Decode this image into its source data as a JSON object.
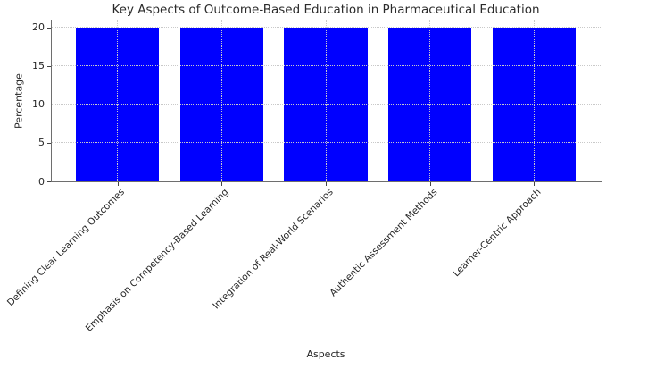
{
  "chart_data": {
    "type": "bar",
    "title": "Key Aspects of Outcome-Based Education in Pharmaceutical Education",
    "xlabel": "Aspects",
    "ylabel": "Percentage",
    "categories": [
      "Defining Clear Learning Outcomes",
      "Emphasis on Competency-Based Learning",
      "Integration of Real-World Scenarios",
      "Authentic Assessment Methods",
      "Learner-Centric Approach"
    ],
    "values": [
      20,
      20,
      20,
      20,
      20
    ],
    "yticks": [
      0,
      5,
      10,
      15,
      20
    ],
    "ylim": [
      0,
      21
    ],
    "bar_color": "#0000ff",
    "grid": "both-dotted",
    "legend": "none"
  }
}
